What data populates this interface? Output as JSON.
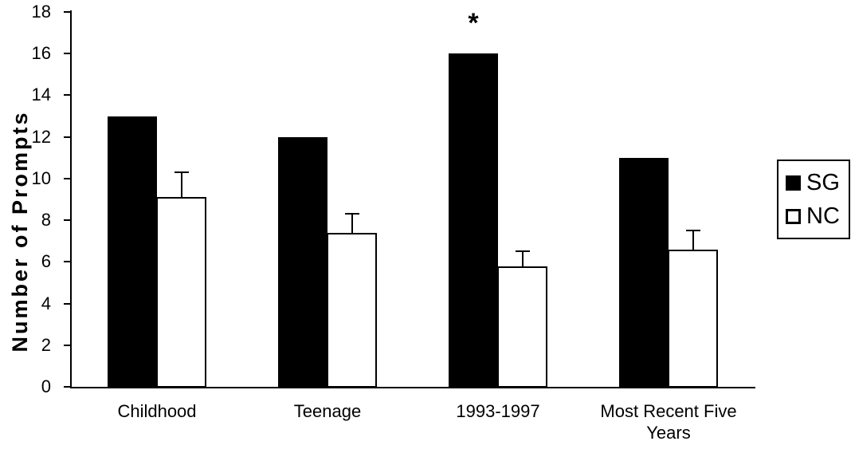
{
  "chart_data": {
    "type": "bar",
    "title": "",
    "xlabel": "",
    "ylabel": "Number of Prompts",
    "ylim": [
      0,
      18
    ],
    "ytick_step": 2,
    "yticks": [
      0,
      2,
      4,
      6,
      8,
      10,
      12,
      14,
      16,
      18
    ],
    "categories": [
      "Childhood",
      "Teenage",
      "1993-1997",
      "Most Recent Five Years"
    ],
    "series": [
      {
        "name": "SG",
        "color": "#000000",
        "style": "filled",
        "values": [
          13,
          12,
          16,
          11
        ]
      },
      {
        "name": "NC",
        "color": "#ffffff",
        "border_color": "#000000",
        "style": "outlined",
        "values": [
          9.1,
          7.4,
          5.8,
          6.6
        ],
        "error_plus": [
          1.2,
          0.9,
          0.7,
          0.9
        ]
      }
    ],
    "annotations": [
      {
        "text": "*",
        "category": "1993-1997",
        "series": "SG"
      }
    ],
    "legend": {
      "position": "right",
      "entries": [
        "SG",
        "NC"
      ]
    },
    "grid": false,
    "background": "#ffffff"
  }
}
